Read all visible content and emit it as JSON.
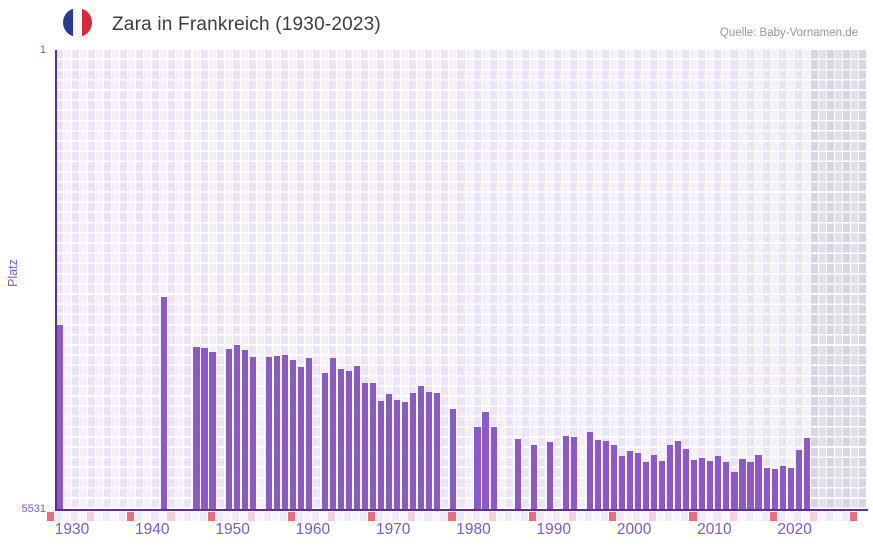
{
  "header": {
    "title": "Zara in Frankreich (1930-2023)",
    "source": "Quelle: Baby-Vornamen.de",
    "flag_icon": "france-flag-icon"
  },
  "y_axis": {
    "label": "Platz",
    "top_tick": "1",
    "bottom_tick": "5531"
  },
  "x_axis": {
    "tick_years": [
      1930,
      1940,
      1950,
      1960,
      1970,
      1980,
      1990,
      2000,
      2010,
      2020
    ]
  },
  "colors": {
    "bar": "#8d59c4",
    "axis_line": "#5f2e92",
    "tick_label": "#7e57c8",
    "title_text": "#3b3b49",
    "source_text": "#98939f",
    "cell_light": "#f3f0fa",
    "cell_dark": "#eae4f6",
    "future_cell_light": "#e3dfed",
    "future_cell_dark": "#d9d4e5",
    "marker_decade": "#e4717d",
    "marker_half_decade": "#f4cfdb",
    "marker_plain_light": "#f8f6fc",
    "marker_plain_dark": "#efeaf7",
    "flag_blue": "#2b3a92",
    "flag_white": "#f7f7f7",
    "flag_red": "#d52b39"
  },
  "chart_data": {
    "type": "bar",
    "title": "Zara in Frankreich (1930-2023)",
    "xlabel": "",
    "ylabel": "Platz",
    "ylim": [
      1,
      5531
    ],
    "y_inverted": true,
    "x_range": [
      1930,
      2030
    ],
    "future_shaded_from": 2024,
    "grid": true,
    "legend": false,
    "points": [
      {
        "year": 1930,
        "rank": 3314
      },
      {
        "year": 1943,
        "rank": 2976
      },
      {
        "year": 1947,
        "rank": 3579
      },
      {
        "year": 1948,
        "rank": 3591
      },
      {
        "year": 1949,
        "rank": 3639
      },
      {
        "year": 1951,
        "rank": 3603
      },
      {
        "year": 1952,
        "rank": 3555
      },
      {
        "year": 1953,
        "rank": 3615
      },
      {
        "year": 1954,
        "rank": 3700
      },
      {
        "year": 1956,
        "rank": 3700
      },
      {
        "year": 1957,
        "rank": 3687
      },
      {
        "year": 1958,
        "rank": 3675
      },
      {
        "year": 1959,
        "rank": 3736
      },
      {
        "year": 1960,
        "rank": 3820
      },
      {
        "year": 1961,
        "rank": 3712
      },
      {
        "year": 1963,
        "rank": 3893
      },
      {
        "year": 1964,
        "rank": 3712
      },
      {
        "year": 1965,
        "rank": 3844
      },
      {
        "year": 1966,
        "rank": 3868
      },
      {
        "year": 1967,
        "rank": 3808
      },
      {
        "year": 1968,
        "rank": 4013
      },
      {
        "year": 1969,
        "rank": 4013
      },
      {
        "year": 1970,
        "rank": 4230
      },
      {
        "year": 1971,
        "rank": 4146
      },
      {
        "year": 1972,
        "rank": 4218
      },
      {
        "year": 1973,
        "rank": 4242
      },
      {
        "year": 1974,
        "rank": 4134
      },
      {
        "year": 1975,
        "rank": 4049
      },
      {
        "year": 1976,
        "rank": 4122
      },
      {
        "year": 1977,
        "rank": 4134
      },
      {
        "year": 1979,
        "rank": 4327
      },
      {
        "year": 1982,
        "rank": 4544
      },
      {
        "year": 1983,
        "rank": 4363
      },
      {
        "year": 1984,
        "rank": 4544
      },
      {
        "year": 1987,
        "rank": 4688
      },
      {
        "year": 1989,
        "rank": 4761
      },
      {
        "year": 1991,
        "rank": 4724
      },
      {
        "year": 1993,
        "rank": 4652
      },
      {
        "year": 1994,
        "rank": 4664
      },
      {
        "year": 1996,
        "rank": 4604
      },
      {
        "year": 1997,
        "rank": 4700
      },
      {
        "year": 1998,
        "rank": 4712
      },
      {
        "year": 1999,
        "rank": 4761
      },
      {
        "year": 2000,
        "rank": 4893
      },
      {
        "year": 2001,
        "rank": 4833
      },
      {
        "year": 2002,
        "rank": 4857
      },
      {
        "year": 2003,
        "rank": 4966
      },
      {
        "year": 2004,
        "rank": 4881
      },
      {
        "year": 2005,
        "rank": 4954
      },
      {
        "year": 2006,
        "rank": 4761
      },
      {
        "year": 2007,
        "rank": 4712
      },
      {
        "year": 2008,
        "rank": 4809
      },
      {
        "year": 2009,
        "rank": 4942
      },
      {
        "year": 2010,
        "rank": 4917
      },
      {
        "year": 2011,
        "rank": 4954
      },
      {
        "year": 2012,
        "rank": 4893
      },
      {
        "year": 2013,
        "rank": 4966
      },
      {
        "year": 2014,
        "rank": 5086
      },
      {
        "year": 2015,
        "rank": 4930
      },
      {
        "year": 2016,
        "rank": 4966
      },
      {
        "year": 2017,
        "rank": 4881
      },
      {
        "year": 2018,
        "rank": 5038
      },
      {
        "year": 2019,
        "rank": 5050
      },
      {
        "year": 2020,
        "rank": 5014
      },
      {
        "year": 2021,
        "rank": 5038
      },
      {
        "year": 2022,
        "rank": 4821
      },
      {
        "year": 2023,
        "rank": 4676
      }
    ]
  }
}
